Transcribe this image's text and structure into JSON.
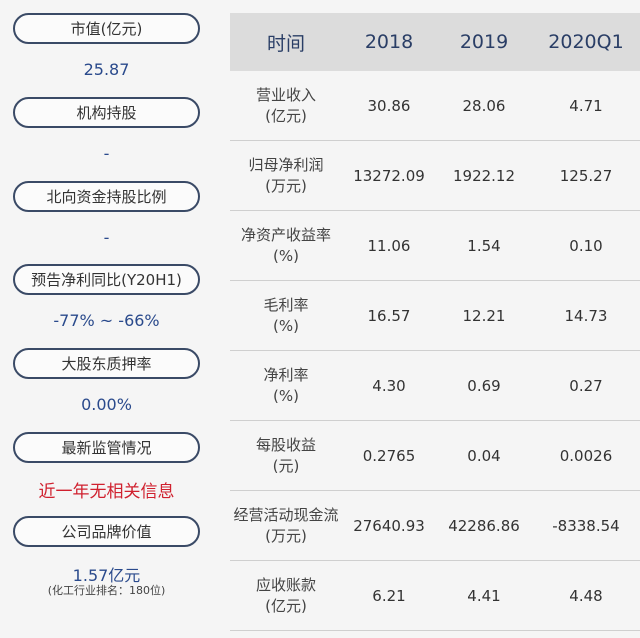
{
  "left_panel": {
    "items": [
      {
        "label": "市值(亿元)",
        "value": "25.87"
      },
      {
        "label": "机构持股",
        "value": "-"
      },
      {
        "label": "北向资金持股比例",
        "value": "-"
      },
      {
        "label": "预告净利同比(Y20H1)",
        "value": "-77% ~ -66%"
      },
      {
        "label": "大股东质押率",
        "value": "0.00%"
      },
      {
        "label": "最新监管情况",
        "value": "近一年无相关信息"
      },
      {
        "label": "公司品牌价值",
        "value": "1.57亿元",
        "note": "(化工行业排名：180位)"
      }
    ]
  },
  "table": {
    "headers": [
      "时间",
      "2018",
      "2019",
      "2020Q1"
    ],
    "rows": [
      {
        "label_line1": "营业收入",
        "label_line2": "(亿元)",
        "values": [
          "30.86",
          "28.06",
          "4.71"
        ]
      },
      {
        "label_line1": "归母净利润",
        "label_line2": "(万元)",
        "values": [
          "13272.09",
          "1922.12",
          "125.27"
        ]
      },
      {
        "label_line1": "净资产收益率",
        "label_line2": "(%)",
        "values": [
          "11.06",
          "1.54",
          "0.10"
        ]
      },
      {
        "label_line1": "毛利率",
        "label_line2": "(%)",
        "values": [
          "16.57",
          "12.21",
          "14.73"
        ]
      },
      {
        "label_line1": "净利率",
        "label_line2": "(%)",
        "values": [
          "4.30",
          "0.69",
          "0.27"
        ]
      },
      {
        "label_line1": "每股收益",
        "label_line2": "(元)",
        "values": [
          "0.2765",
          "0.04",
          "0.0026"
        ]
      },
      {
        "label_line1": "经营活动现金流",
        "label_line2": "(万元)",
        "values": [
          "27640.93",
          "42286.86",
          "-8338.54"
        ]
      },
      {
        "label_line1": "应收账款",
        "label_line2": "(亿元)",
        "values": [
          "6.21",
          "4.41",
          "4.48"
        ]
      }
    ]
  },
  "colors": {
    "pill_border": "#3a4a66",
    "value_blue": "#2a4a8c",
    "value_red": "#d0202e",
    "header_bg": "#dcdcdc"
  }
}
